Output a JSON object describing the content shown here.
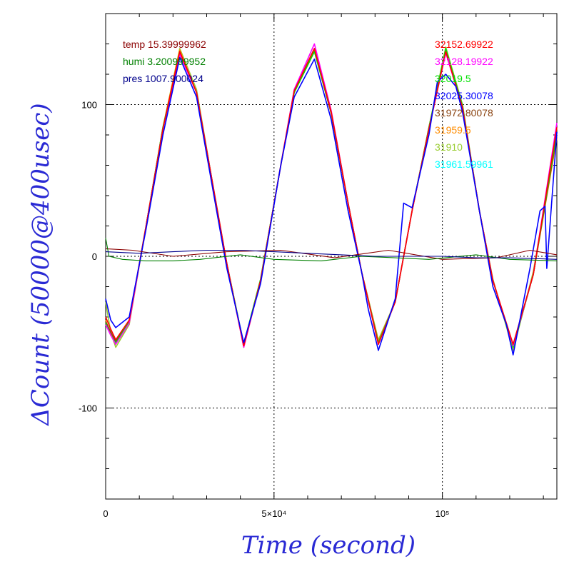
{
  "chart_data": {
    "type": "line",
    "xlabel": "Time (second)",
    "ylabel": "ΔCount (50000@400usec)",
    "xlim": [
      0,
      134000
    ],
    "ylim": [
      -160,
      160
    ],
    "x_ticks": [
      {
        "value": 0,
        "label": "0"
      },
      {
        "value": 50000,
        "label": "5×10⁴"
      },
      {
        "value": 100000,
        "label": "10⁵"
      }
    ],
    "y_ticks": [
      {
        "value": 100,
        "label": "100"
      },
      {
        "value": 0,
        "label": "0"
      },
      {
        "value": -100,
        "label": "-100"
      }
    ],
    "grid": "dotted at major ticks",
    "legend_left": [
      {
        "text": "temp 15.39999962",
        "color": "#8b0000"
      },
      {
        "text": "humi 3.200999952",
        "color": "#008000"
      },
      {
        "text": "pres 1007.900024",
        "color": "#00008b"
      }
    ],
    "legend_right": [
      {
        "text": "32152.69922",
        "color": "#ff0000"
      },
      {
        "text": "32128.19922",
        "color": "#ff00ff"
      },
      {
        "text": "32019.5",
        "color": "#00e000"
      },
      {
        "text": "32025.30078",
        "color": "#0000ff"
      },
      {
        "text": "31972.80078",
        "color": "#8b4513"
      },
      {
        "text": "31959.5",
        "color": "#ff8c00"
      },
      {
        "text": "31910",
        "color": "#9acd32"
      },
      {
        "text": "31961.59961",
        "color": "#00ffff"
      }
    ],
    "series": [
      {
        "color": "#9acd32",
        "x": [
          0,
          1500,
          3000,
          7000,
          12000,
          17000,
          22000,
          27000,
          32000,
          36000,
          41000,
          46000,
          52000,
          56000,
          62000,
          67000,
          72000,
          76000,
          81000,
          86000,
          91000,
          96000,
          101000,
          106000,
          111000,
          115000,
          121000,
          127000,
          134000
        ],
        "y": [
          -30,
          -50,
          -60,
          -45,
          20,
          85,
          137,
          110,
          45,
          -5,
          -58,
          -15,
          60,
          110,
          137,
          95,
          35,
          -10,
          -55,
          -30,
          30,
          85,
          138,
          100,
          30,
          -15,
          -62,
          -10,
          80
        ]
      },
      {
        "color": "#ff8c00",
        "x": [
          0,
          1500,
          3000,
          7000,
          12000,
          17000,
          22000,
          27000,
          32000,
          36000,
          41000,
          46000,
          52000,
          56000,
          62000,
          67000,
          72000,
          76000,
          81000,
          86000,
          91000,
          96000,
          101000,
          106000,
          111000,
          115000,
          121000,
          127000,
          134000
        ],
        "y": [
          -42,
          -52,
          -57,
          -44,
          20,
          85,
          136,
          108,
          45,
          -5,
          -60,
          -16,
          60,
          108,
          136,
          94,
          35,
          -10,
          -56,
          -30,
          30,
          85,
          136,
          98,
          30,
          -16,
          -60,
          -12,
          78
        ]
      },
      {
        "color": "#8b4513",
        "x": [
          0,
          1500,
          3000,
          7000,
          12000,
          17000,
          22000,
          27000,
          32000,
          36000,
          41000,
          46000,
          52000,
          56000,
          62000,
          67000,
          72000,
          76000,
          81000,
          86000,
          91000,
          96000,
          101000,
          106000,
          111000,
          115000,
          121000,
          127000,
          134000
        ],
        "y": [
          -43,
          -50,
          -56,
          -43,
          20,
          84,
          134,
          108,
          45,
          -5,
          -59,
          -16,
          60,
          108,
          135,
          94,
          35,
          -10,
          -57,
          -30,
          30,
          84,
          135,
          98,
          30,
          -16,
          -59,
          -12,
          80
        ]
      },
      {
        "color": "#00e000",
        "x": [
          0,
          1500,
          3000,
          7000,
          12000,
          17000,
          22000,
          27000,
          32000,
          36000,
          41000,
          46000,
          52000,
          56000,
          62000,
          67000,
          72000,
          76000,
          81000,
          86000,
          91000,
          96000,
          101000,
          106000,
          111000,
          115000,
          121000,
          127000,
          134000
        ],
        "y": [
          -44,
          -52,
          -57,
          -43,
          20,
          85,
          133,
          108,
          45,
          -5,
          -58,
          -15,
          60,
          108,
          135,
          95,
          35,
          -10,
          -57,
          -30,
          30,
          85,
          137,
          99,
          30,
          -16,
          -60,
          -12,
          82
        ]
      },
      {
        "color": "#ff00ff",
        "x": [
          0,
          1500,
          3000,
          7000,
          12000,
          17000,
          22000,
          27000,
          32000,
          36000,
          41000,
          46000,
          52000,
          56000,
          62000,
          67000,
          72000,
          76000,
          81000,
          86000,
          91000,
          96000,
          101000,
          106000,
          111000,
          115000,
          121000,
          127000,
          134000
        ],
        "y": [
          -45,
          -52,
          -58,
          -44,
          20,
          84,
          133,
          108,
          45,
          -5,
          -60,
          -16,
          60,
          110,
          140,
          96,
          35,
          -10,
          -58,
          -30,
          30,
          84,
          134,
          98,
          30,
          -16,
          -59,
          -12,
          88
        ]
      },
      {
        "color": "#ff0000",
        "x": [
          0,
          1500,
          3000,
          7000,
          12000,
          17000,
          22000,
          27000,
          32000,
          36000,
          41000,
          46000,
          52000,
          56000,
          62000,
          67000,
          72000,
          76000,
          81000,
          86000,
          91000,
          96000,
          101000,
          106000,
          111000,
          115000,
          121000,
          127000,
          134000
        ],
        "y": [
          -40,
          -48,
          -55,
          -42,
          20,
          84,
          135,
          108,
          45,
          -5,
          -59,
          -16,
          60,
          109,
          137,
          95,
          35,
          -10,
          -58,
          -30,
          30,
          84,
          135,
          98,
          30,
          -16,
          -58,
          -12,
          85
        ]
      },
      {
        "color": "#0000ff",
        "x": [
          0,
          1500,
          3000,
          7000,
          12000,
          17000,
          22000,
          27000,
          32000,
          36000,
          41000,
          46000,
          52000,
          56000,
          62000,
          67000,
          72000,
          76000,
          78000,
          81000,
          86000,
          88500,
          91000,
          96000,
          98500,
          101000,
          104000,
          106000,
          111000,
          115000,
          119000,
          121000,
          126000,
          129000,
          130500,
          131000,
          134000
        ],
        "y": [
          -28,
          -42,
          -47,
          -40,
          18,
          80,
          131,
          105,
          42,
          -8,
          -57,
          -18,
          60,
          105,
          130,
          90,
          30,
          -10,
          -35,
          -62,
          -28,
          35,
          32,
          80,
          115,
          120,
          112,
          95,
          30,
          -20,
          -45,
          -65,
          -8,
          30,
          33,
          -8,
          82
        ]
      },
      {
        "color": "#8b0000",
        "x": [
          0,
          8000,
          20000,
          36000,
          52000,
          68000,
          84000,
          100000,
          116000,
          126000,
          134000
        ],
        "y": [
          5,
          4,
          0,
          3,
          4,
          -1,
          4,
          -2,
          -1,
          4,
          1
        ]
      },
      {
        "color": "#008000",
        "x": [
          0,
          1000,
          5000,
          12000,
          20000,
          28000,
          40000,
          50000,
          64000,
          76000,
          86000,
          96000,
          110000,
          120000,
          134000
        ],
        "y": [
          12,
          0,
          -2,
          -3,
          -3,
          -2,
          1,
          -2,
          -3,
          0,
          -1,
          -2,
          1,
          -2,
          -3
        ]
      },
      {
        "color": "#00008b",
        "x": [
          0,
          10000,
          20000,
          30000,
          40000,
          50000,
          60000,
          70000,
          80000,
          90000,
          100000,
          110000,
          120000,
          134000
        ],
        "y": [
          3,
          2,
          3,
          4,
          4,
          3,
          2,
          1,
          0,
          0,
          0,
          -1,
          -1,
          -2
        ]
      }
    ]
  }
}
